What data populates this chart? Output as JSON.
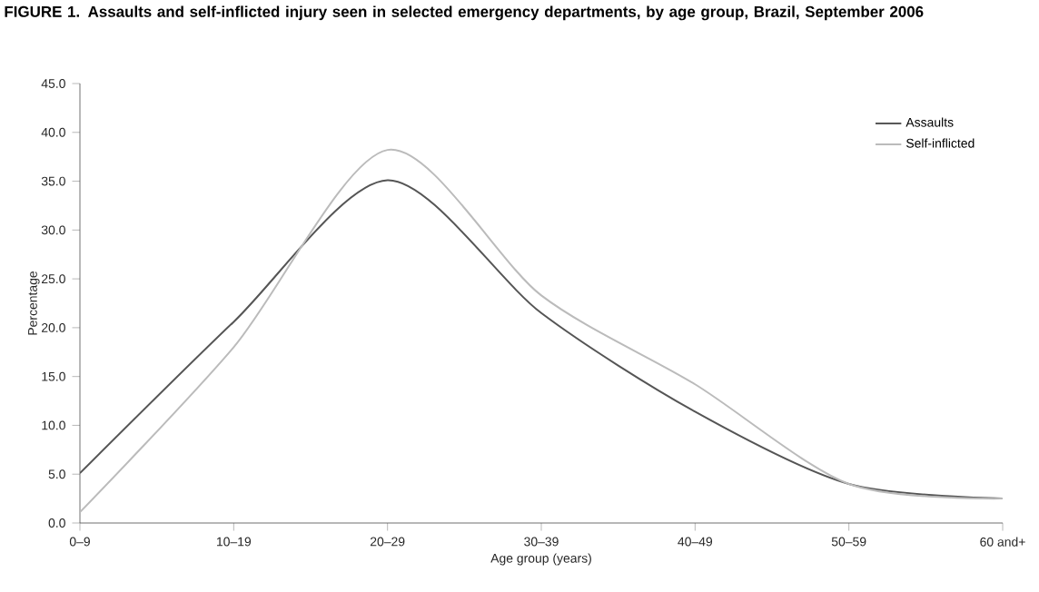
{
  "chart_data": {
    "type": "line",
    "title": "FIGURE 1. Assaults and self-inflicted injury seen in selected emergency departments, by age group, Brazil, September 2006",
    "xlabel": "Age group (years)",
    "ylabel": "Percentage",
    "categories": [
      "0–9",
      "10–19",
      "20–29",
      "30–39",
      "40–49",
      "50–59",
      "60 and+"
    ],
    "series": [
      {
        "name": "Assaults",
        "color": "#555555",
        "values": [
          5.1,
          20.6,
          35.1,
          21.5,
          11.4,
          4.0,
          2.5
        ]
      },
      {
        "name": "Self-inflicted",
        "color": "#bbbbbb",
        "values": [
          1.1,
          18.0,
          38.2,
          23.3,
          14.2,
          4.0,
          2.5
        ]
      }
    ],
    "ylim": [
      0,
      45
    ],
    "yticks": [
      {
        "value": 0,
        "label": "0.0"
      },
      {
        "value": 5,
        "label": "5.0"
      },
      {
        "value": 10,
        "label": "10.0"
      },
      {
        "value": 15,
        "label": "15.0"
      },
      {
        "value": 20,
        "label": "20.0"
      },
      {
        "value": 25,
        "label": "25.0"
      },
      {
        "value": 30,
        "label": "30.0"
      },
      {
        "value": 35,
        "label": "35.0"
      },
      {
        "value": 40,
        "label": "40.0"
      },
      {
        "value": 45,
        "label": "45.0"
      }
    ],
    "grid": false,
    "legend": "top right",
    "marker": "none",
    "line_style": "solid"
  }
}
